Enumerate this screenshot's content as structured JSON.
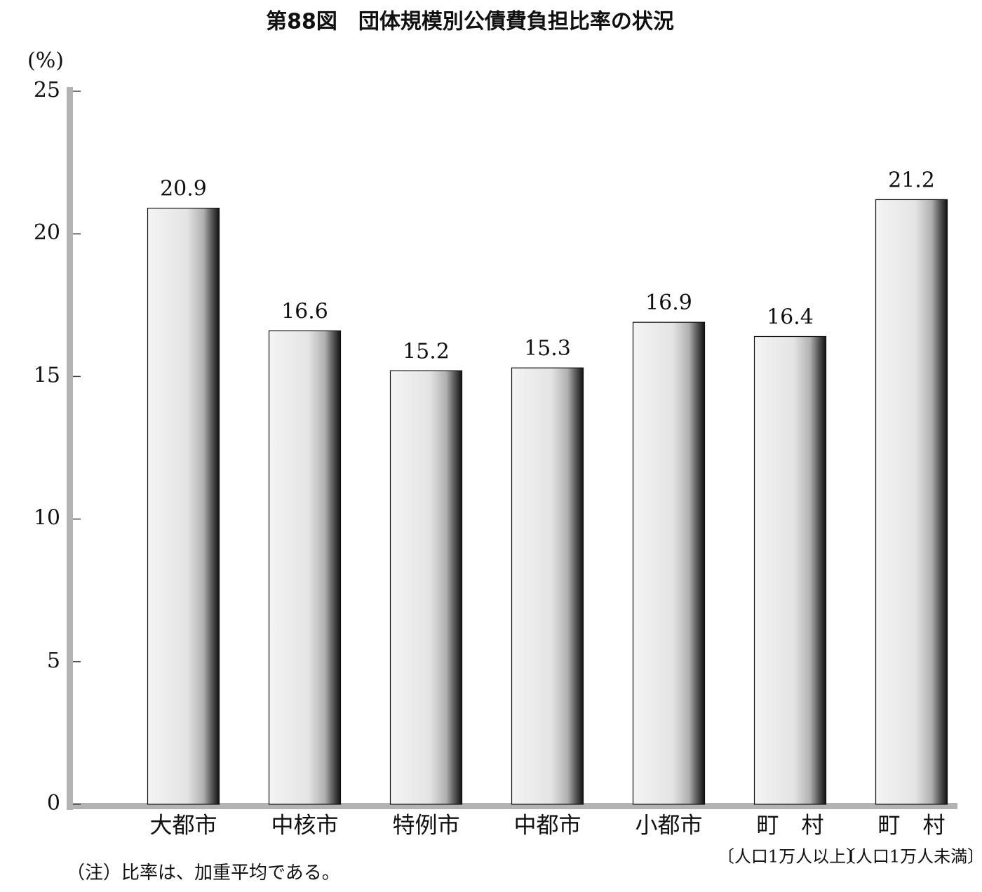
{
  "chart_data": {
    "type": "bar",
    "title": "第88図　団体規模別公債費負担比率の状況",
    "y_unit": "(%)",
    "categories": [
      "大都市",
      "中核市",
      "特例市",
      "中都市",
      "小都市",
      "町　村",
      "町　村"
    ],
    "category_subtitles": [
      null,
      null,
      null,
      null,
      null,
      "〔人口1万人以上〕",
      "〔人口1万人未満〕"
    ],
    "values": [
      20.9,
      16.6,
      15.2,
      15.3,
      16.9,
      16.4,
      21.2
    ],
    "ylim": [
      0,
      25
    ],
    "yticks": [
      0,
      5,
      10,
      15,
      20,
      25
    ],
    "color": "#e4e4e4",
    "note": "（注）比率は、加重平均である。"
  }
}
